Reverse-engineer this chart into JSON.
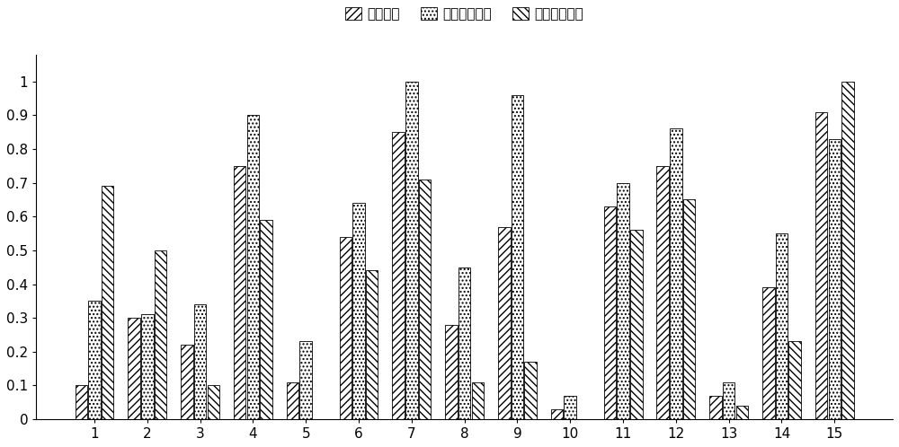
{
  "categories": [
    1,
    2,
    3,
    4,
    5,
    6,
    7,
    8,
    9,
    10,
    11,
    12,
    13,
    14,
    15
  ],
  "series": {
    "混合分数": [
      0.1,
      0.3,
      0.22,
      0.75,
      0.11,
      0.54,
      0.85,
      0.28,
      0.57,
      0.03,
      0.63,
      0.75,
      0.07,
      0.39,
      0.91
    ],
    "拉普拉斯分数": [
      0.35,
      0.31,
      0.34,
      0.9,
      0.23,
      0.64,
      1.0,
      0.45,
      0.96,
      0.07,
      0.7,
      0.86,
      0.11,
      0.55,
      0.83
    ],
    "随机森林分数": [
      0.69,
      0.5,
      0.1,
      0.59,
      0.0,
      0.44,
      0.71,
      0.11,
      0.17,
      0.0,
      0.56,
      0.65,
      0.04,
      0.23,
      1.0
    ]
  },
  "legend_labels": [
    "混合分数",
    "拉普拉斯分数",
    "随机森林分数"
  ],
  "hatch_patterns": [
    "////",
    "....",
    "\\\\\\\\"
  ],
  "bar_facecolors": [
    "white",
    "white",
    "white"
  ],
  "bar_edgecolors": [
    "black",
    "black",
    "black"
  ],
  "ylim": [
    0,
    1.08
  ],
  "yticks": [
    0,
    0.1,
    0.2,
    0.3,
    0.4,
    0.5,
    0.6,
    0.7,
    0.8,
    0.9,
    1.0
  ],
  "ytick_labels": [
    "0",
    "0.1",
    "0.2",
    "0.3",
    "0.4",
    "0.5",
    "0.6",
    "0.7",
    "0.8",
    "0.9",
    "1"
  ],
  "bar_width": 0.23,
  "bar_spacing": 0.02,
  "figsize": [
    10.0,
    4.98
  ],
  "dpi": 100,
  "tick_fontsize": 11,
  "legend_fontsize": 11
}
